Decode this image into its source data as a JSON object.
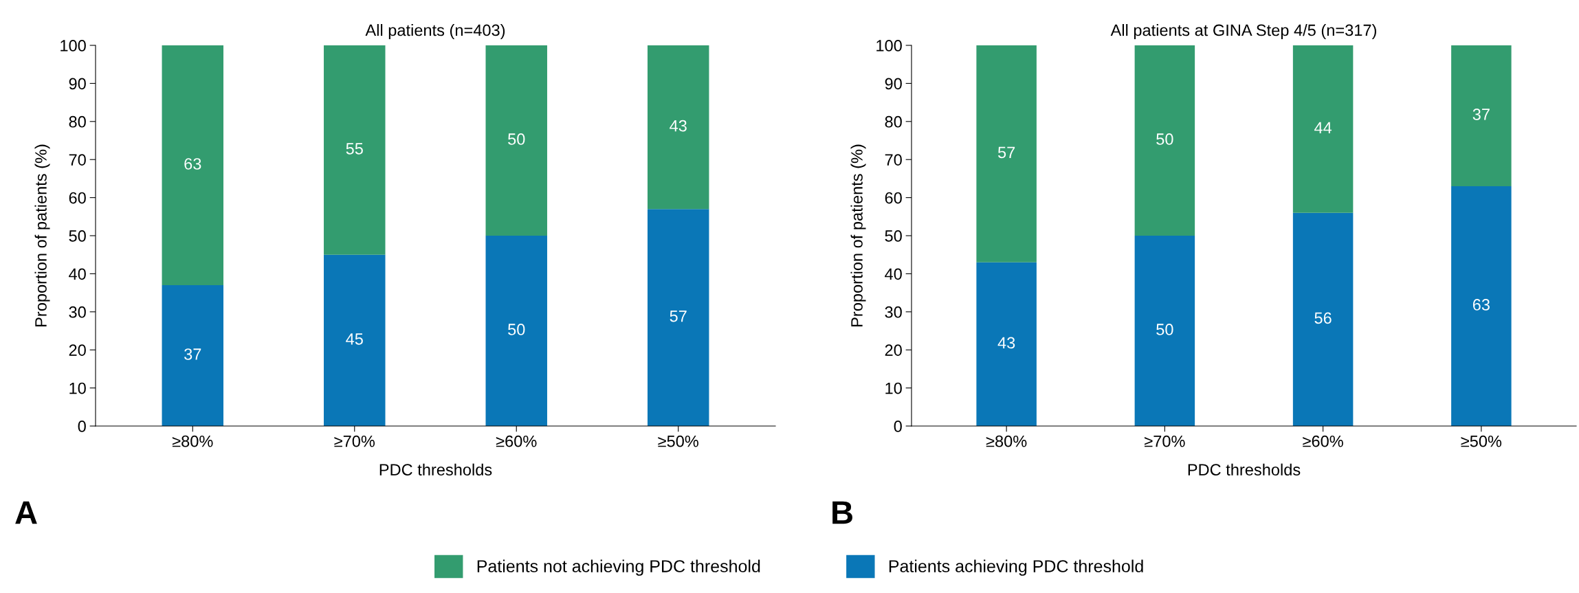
{
  "chart_data": [
    {
      "type": "bar",
      "stacked": true,
      "title": "All patients (n=403)",
      "xlabel": "PDC thresholds",
      "ylabel": "Proportion of patients (%)",
      "categories": [
        "≥80%",
        "≥70%",
        "≥60%",
        "≥50%"
      ],
      "series": [
        {
          "name": "Patients achieving PDC threshold",
          "color": "#0a77b7",
          "values": [
            37,
            45,
            50,
            57
          ]
        },
        {
          "name": "Patients not achieving PDC threshold",
          "color": "#339c6f",
          "values": [
            63,
            55,
            50,
            43
          ]
        }
      ],
      "ylim": [
        0,
        100
      ],
      "yticks": [
        0,
        10,
        20,
        30,
        40,
        50,
        60,
        70,
        80,
        90,
        100
      ],
      "data_labels": true,
      "legend": "bottom",
      "grid": false,
      "annotations": [
        "A"
      ]
    },
    {
      "type": "bar",
      "stacked": true,
      "title": "All patients at GINA Step 4/5 (n=317)",
      "xlabel": "PDC thresholds",
      "ylabel": "Proportion of patients (%)",
      "categories": [
        "≥80%",
        "≥70%",
        "≥60%",
        "≥50%"
      ],
      "series": [
        {
          "color": "#0a77b7",
          "values": [
            43,
            50,
            56,
            63
          ]
        },
        {
          "color": "#339c6f",
          "values": [
            57,
            50,
            44,
            37
          ]
        }
      ],
      "ylim": [
        0,
        100
      ],
      "yticks": [
        0,
        10,
        20,
        30,
        40,
        50,
        60,
        70,
        80,
        90,
        100
      ],
      "data_labels": true,
      "grid": false,
      "annotations": [
        "B"
      ]
    }
  ]
}
